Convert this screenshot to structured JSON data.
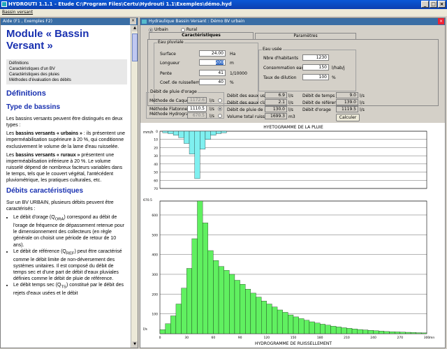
{
  "app": {
    "title": "HYDROUTI 1.1.1 - Etude C:\\Program Files\\Certu\\Hydrouti 1.1\\Exemples\\démo.hyd",
    "menu": "Bassin versant"
  },
  "help": {
    "title": "Aide (F1 , Exemples F2)",
    "h1": "Module « Bassin Versant »",
    "toc": [
      "Définitions",
      "Caractéristiques d'un BV",
      "Caractéristiques des pluies",
      "Méthodes d'évaluation des débits"
    ],
    "h_def": "Définitions",
    "h_types": "Type de bassins",
    "p1": "Les bassins versants peuvent être distingués en deux types :",
    "p2_bold": "bassins versants « urbains »",
    "p2_pre": "Les ",
    "p2_post": " : ils présentent une imperméabilisation supérieure à 20 %, qui conditionne exclusivement le volume de la lame d'eau ruisselée.",
    "p3_bold": "bassins versants « ruraux »",
    "p3_pre": "Les ",
    "p3_post": " présentent une imperméabilisation inférieure à 20 %. Le volume ruisselé dépend de nombreux facteurs variables dans le temps, tels que le couvert végétal, l'antécédent pluviométrique, les pratiques culturales, etc.",
    "h_debits": "Débits caractéristiques",
    "p4": "Sur un BV URBAIN, plusieurs débits peuvent être caractérisés :",
    "b1": "Le débit d'orage (Q",
    "b1s": "ORA",
    "b1e": ") correspond au débit de l'orage de fréquence de dépassement retenue pour le dimensionnement des collecteurs (en règle générale on choisit une période de retour de 10 ans).",
    "b2": "Le débit de référence (Q",
    "b2s": "REF",
    "b2e": ") peut être caractérisé comme le débit limite de non-déversement des systèmes unitaires. Il est composé du débit de temps sec et d'une part de débit d'eaux pluviales définies comme le débit de pluie de référence.",
    "b3": "Le débit temps sec (Q",
    "b3s": "TS",
    "b3e": ") constitué par le débit des rejets d'eaux usées et le débit"
  },
  "main": {
    "title": "Hydraulique Bassin Versant : Démo BV urbain",
    "radio_urbain": "Urbain",
    "radio_rural": "Rural",
    "tab1": "Caractéristiques",
    "tab2": "Paramètres",
    "ep": {
      "label": "Eau pluviale",
      "surface_l": "Surface",
      "surface": "24.00",
      "surface_u": "Ha",
      "longueur_l": "Longueur",
      "longueur": "200",
      "longueur_u": "m",
      "pente_l": "Pente",
      "pente": "41",
      "pente_u": "1/10000",
      "coef_l": "Coef. de ruissellement",
      "coef": "40",
      "coef_u": "%"
    },
    "eu": {
      "label": "Eau usée",
      "hab_l": "Nbre d'habitants",
      "hab": "1230",
      "conso_l": "Consommation eau",
      "conso": "150",
      "conso_u": "l/hab/j",
      "dil_l": "Taux de dilution",
      "dil": "100",
      "dil_u": "%"
    },
    "dp": {
      "label": "Débit de pluie d'orage",
      "caquot_l": "Méthode de Caquot",
      "caquot": "1172.6",
      "caquot_u": "l/s",
      "flat_l": "Méthode Flatonnelle",
      "flat": "1110.5",
      "flat_u": "l/s",
      "hyd_l": "Méthode Hydrogramme",
      "hyd": "670.5",
      "hyd_u": "l/s"
    },
    "res": {
      "eu_l": "Débit des eaux usées",
      "eu": "6.9",
      "eu_u": "l/s",
      "ec_l": "Débit des eaux claires",
      "ec": "2.1",
      "ec_u": "l/s",
      "pr_l": "Débit de pluie de référence",
      "pr": "130.0",
      "pr_u": "l/s",
      "vol_l": "Volume total ruisselé",
      "vol": "1699.3",
      "vol_u": "m3",
      "ts_l": "Débit de temps sec",
      "ts": "9.0",
      "ts_u": "l/s",
      "ref_l": "Débit de référence",
      "ref": "139.0",
      "ref_u": "l/s",
      "ora_l": "Débit d'orage",
      "ora": "1119.5",
      "ora_u": "l/s"
    },
    "calc": "Calculer"
  },
  "chart_data": [
    {
      "type": "bar",
      "title": "HYETOGRAMME DE LA PLUIE",
      "ylabel": "mm/h",
      "ylim": [
        0,
        70
      ],
      "yticks": [
        "0",
        "10",
        "20",
        "30",
        "40",
        "50",
        "60",
        "70"
      ],
      "color": "#7ff0f0",
      "x": [
        6,
        12,
        18,
        24,
        30,
        36,
        42,
        48,
        54,
        60,
        66,
        72
      ],
      "values": [
        2,
        3,
        5,
        8,
        15,
        28,
        58,
        22,
        10,
        5,
        3,
        2
      ]
    },
    {
      "type": "bar",
      "title": "HYDROGRAMME DE RUISSELLEMENT",
      "ylabel": "l/s",
      "xlabel": "mn",
      "ylim": [
        0,
        670.5
      ],
      "yticks": [
        "0",
        "100",
        "200",
        "300",
        "400",
        "500",
        "600",
        "670.5"
      ],
      "xticks": [
        "0",
        "30",
        "60",
        "90",
        "120",
        "150",
        "180",
        "210",
        "240",
        "270",
        "300"
      ],
      "xlim": [
        0,
        300
      ],
      "color": "#60f060",
      "x": [
        3,
        9,
        15,
        21,
        27,
        33,
        39,
        45,
        51,
        57,
        63,
        69,
        75,
        81,
        87,
        93,
        99,
        105,
        111,
        117,
        123,
        129,
        135,
        141,
        147,
        153,
        159,
        165,
        171,
        177,
        183,
        189,
        195,
        201,
        207,
        213,
        219,
        225,
        231,
        237,
        243,
        249,
        255,
        261,
        267,
        273,
        279,
        285,
        291,
        297
      ],
      "values": [
        20,
        50,
        90,
        150,
        230,
        330,
        480,
        670.5,
        560,
        420,
        370,
        340,
        320,
        300,
        270,
        250,
        225,
        205,
        185,
        165,
        150,
        135,
        120,
        108,
        95,
        85,
        76,
        68,
        60,
        54,
        48,
        43,
        38,
        34,
        30,
        27,
        24,
        21,
        19,
        17,
        15,
        13,
        11,
        10,
        9,
        8,
        7,
        6,
        5,
        4
      ]
    }
  ]
}
